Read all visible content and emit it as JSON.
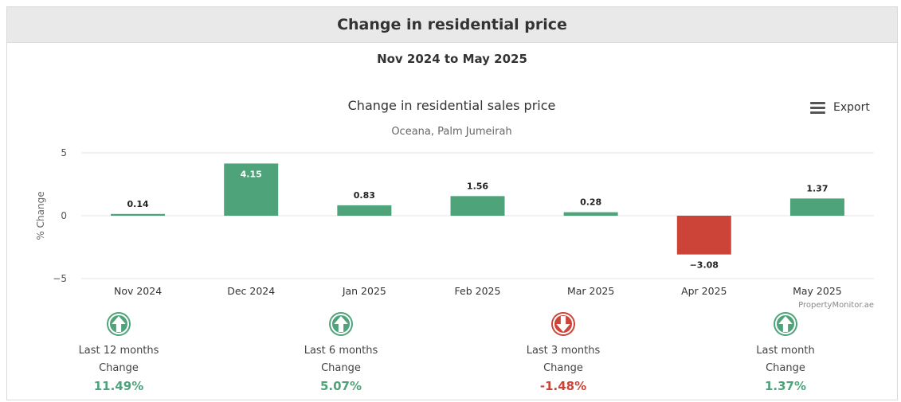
{
  "header": {
    "title": "Change in residential price"
  },
  "subtitle": "Nov 2024 to May 2025",
  "export_label": "Export",
  "credit": "PropertyMonitor.ae",
  "colors": {
    "positive": "#4fa37a",
    "negative": "#cc4437",
    "header_bg": "#e9e9e9"
  },
  "chart_data": {
    "type": "bar",
    "title": "Change in residential sales price",
    "subtitle": "Oceana, Palm Jumeirah",
    "ylabel": "% Change",
    "xlabel": "",
    "categories": [
      "Nov 2024",
      "Dec 2024",
      "Jan 2025",
      "Feb 2025",
      "Mar 2025",
      "Apr 2025",
      "May 2025"
    ],
    "values": [
      0.14,
      4.15,
      0.83,
      1.56,
      0.28,
      -3.08,
      1.37
    ],
    "data_labels": [
      "0.14",
      "4.15",
      "0.83",
      "1.56",
      "0.28",
      "−3.08",
      "1.37"
    ],
    "yticks": [
      "5",
      "0",
      "−5"
    ],
    "ylim": [
      -5,
      5
    ],
    "grid": true
  },
  "stats": [
    {
      "period": "Last 12 months",
      "label": "Change",
      "value": "11.49%",
      "direction": "up",
      "icon": "arrow-up-circle-icon"
    },
    {
      "period": "Last 6 months",
      "label": "Change",
      "value": "5.07%",
      "direction": "up",
      "icon": "arrow-up-circle-icon"
    },
    {
      "period": "Last 3 months",
      "label": "Change",
      "value": "-1.48%",
      "direction": "down",
      "icon": "arrow-down-circle-icon"
    },
    {
      "period": "Last month",
      "label": "Change",
      "value": "1.37%",
      "direction": "up",
      "icon": "arrow-up-circle-icon"
    }
  ]
}
